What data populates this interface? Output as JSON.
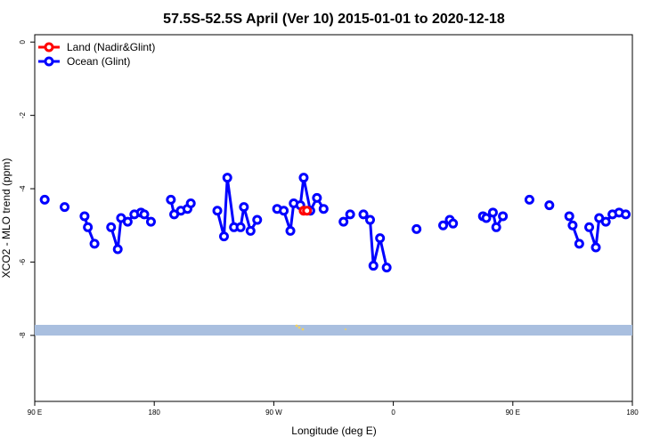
{
  "chart_data": {
    "type": "line",
    "title": "57.5S-52.5S April (Ver 10)   2015-01-01 to 2020-12-18",
    "xlabel": "Longitude (deg E)",
    "ylabel": "XCO2 - MLO trend (ppm)",
    "xlim": [
      90,
      540
    ],
    "ylim": [
      -9.8,
      0.2
    ],
    "x_ticks": [
      {
        "value": 90,
        "label": "90 E"
      },
      {
        "value": 180,
        "label": "180"
      },
      {
        "value": 270,
        "label": "90 W"
      },
      {
        "value": 360,
        "label": "0"
      },
      {
        "value": 450,
        "label": "90 E"
      },
      {
        "value": 540,
        "label": "180"
      }
    ],
    "y_ticks": [
      {
        "value": 0,
        "label": "0"
      },
      {
        "value": -2,
        "label": "-2"
      },
      {
        "value": -4,
        "label": "-4"
      },
      {
        "value": -6,
        "label": "-6"
      },
      {
        "value": -8,
        "label": "-8"
      }
    ],
    "legend_position": "top-left",
    "grid": false,
    "series": [
      {
        "name": "Land (Nadir&Glint)",
        "color": "#ff0000",
        "segments": [
          [
            [
              292.5,
              -4.6
            ],
            [
              295.0,
              -4.6
            ]
          ]
        ]
      },
      {
        "name": "Ocean (Glint)",
        "color": "#0000ff",
        "segments": [
          [
            [
              97.5,
              -4.3
            ]
          ],
          [
            [
              112.5,
              -4.5
            ]
          ],
          [
            [
              127.5,
              -4.75
            ],
            [
              130.0,
              -5.05
            ],
            [
              135.0,
              -5.5
            ]
          ],
          [
            [
              147.5,
              -5.05
            ],
            [
              152.5,
              -5.65
            ],
            [
              155.0,
              -4.8
            ],
            [
              160.0,
              -4.9
            ],
            [
              165.0,
              -4.7
            ],
            [
              170.0,
              -4.65
            ],
            [
              172.5,
              -4.7
            ],
            [
              177.5,
              -4.9
            ]
          ],
          [
            [
              192.5,
              -4.3
            ],
            [
              195.0,
              -4.7
            ],
            [
              200.0,
              -4.6
            ],
            [
              205.0,
              -4.55
            ],
            [
              207.5,
              -4.4
            ]
          ],
          [
            [
              227.5,
              -4.6
            ],
            [
              232.5,
              -5.3
            ],
            [
              235.0,
              -3.7
            ],
            [
              240.0,
              -5.05
            ],
            [
              245.0,
              -5.05
            ],
            [
              247.5,
              -4.5
            ],
            [
              252.5,
              -5.15
            ],
            [
              257.5,
              -4.85
            ]
          ],
          [
            [
              272.5,
              -4.55
            ],
            [
              277.5,
              -4.6
            ],
            [
              282.5,
              -5.15
            ],
            [
              285.0,
              -4.4
            ],
            [
              290.0,
              -4.45
            ],
            [
              292.5,
              -3.7
            ],
            [
              297.5,
              -4.6
            ],
            [
              302.5,
              -4.25
            ],
            [
              307.5,
              -4.55
            ]
          ],
          [
            [
              322.5,
              -4.9
            ],
            [
              327.5,
              -4.7
            ]
          ],
          [
            [
              337.5,
              -4.7
            ],
            [
              342.5,
              -4.85
            ],
            [
              345.0,
              -6.1
            ],
            [
              350.0,
              -5.35
            ],
            [
              355.0,
              -6.15
            ]
          ],
          [
            [
              377.5,
              -5.1
            ]
          ],
          [
            [
              397.5,
              -5.0
            ],
            [
              402.5,
              -4.85
            ],
            [
              405.0,
              -4.95
            ]
          ],
          [
            [
              427.5,
              -4.75
            ],
            [
              430.0,
              -4.8
            ],
            [
              435.0,
              -4.65
            ],
            [
              437.5,
              -5.05
            ],
            [
              442.5,
              -4.75
            ]
          ],
          [
            [
              462.5,
              -4.3
            ]
          ],
          [
            [
              477.5,
              -4.45
            ]
          ],
          [
            [
              492.5,
              -4.75
            ],
            [
              495.0,
              -5.0
            ],
            [
              500.0,
              -5.5
            ]
          ],
          [
            [
              507.5,
              -5.05
            ],
            [
              512.5,
              -5.6
            ],
            [
              515.0,
              -4.8
            ],
            [
              520.0,
              -4.9
            ],
            [
              525.0,
              -4.7
            ],
            [
              530.0,
              -4.65
            ],
            [
              535.0,
              -4.7
            ]
          ]
        ]
      }
    ]
  }
}
